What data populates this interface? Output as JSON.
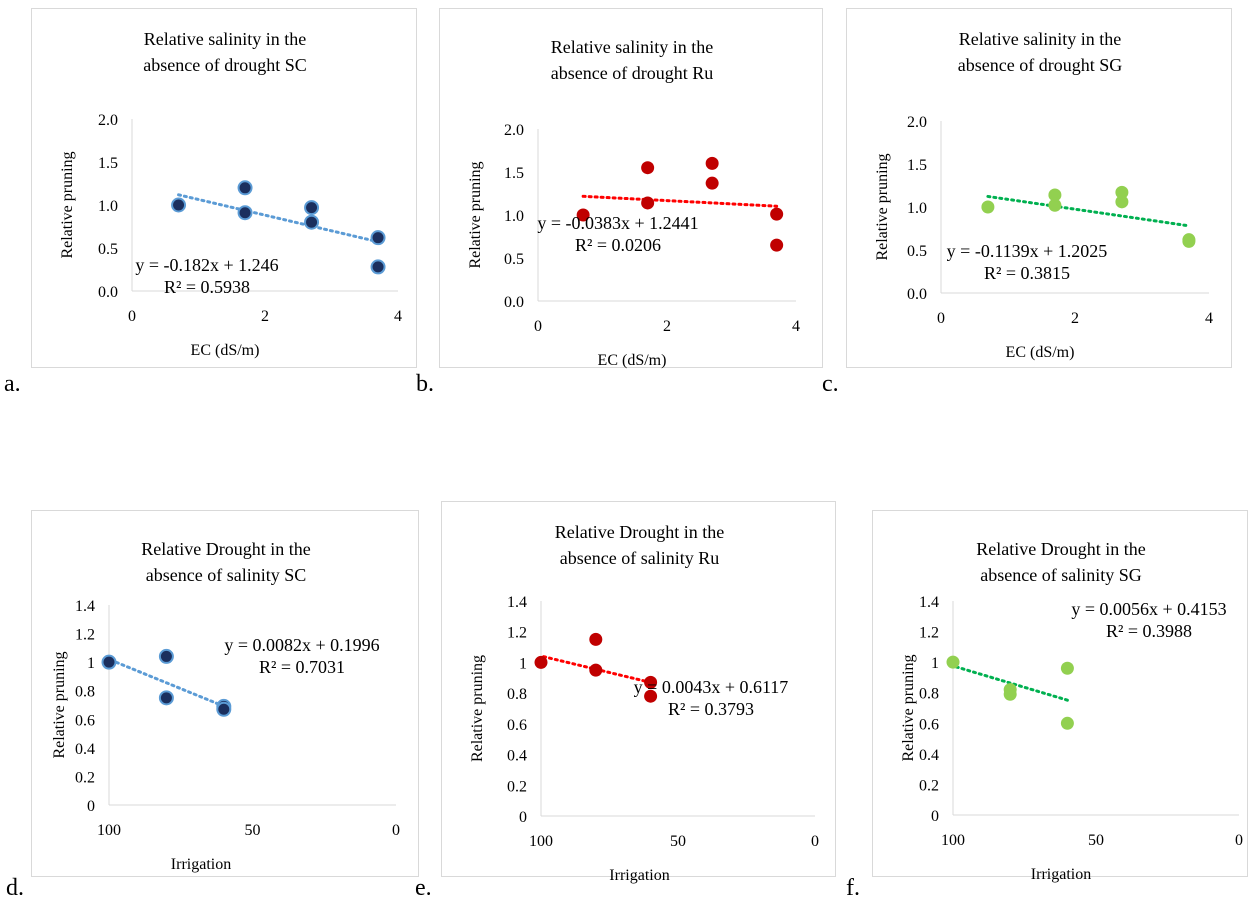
{
  "chart_data": [
    {
      "panel_label": "a.",
      "type": "scatter",
      "title": [
        "Relative salinity in the",
        "absence of drought SC"
      ],
      "xlabel": "EC (dS/m)",
      "ylabel": "Relative pruning",
      "xlim": [
        0,
        4
      ],
      "ylim": [
        0,
        2
      ],
      "xticks": [
        "0",
        "2",
        "4"
      ],
      "yticks": [
        "0.0",
        "0.5",
        "1.0",
        "1.5",
        "2.0"
      ],
      "grid": false,
      "x_reversed": false,
      "color": "#1b2f5e",
      "ring_color": "#5b9bd5",
      "trend_color": "#5b9bd5",
      "trend": {
        "slope": -0.182,
        "intercept": 1.246,
        "x_range": [
          0.7,
          3.7
        ]
      },
      "equation": "y = -0.182x + 1.246",
      "r2": "R² = 0.5938",
      "points": [
        {
          "x": 0.7,
          "y": 1.0
        },
        {
          "x": 1.7,
          "y": 1.2
        },
        {
          "x": 1.7,
          "y": 0.91
        },
        {
          "x": 2.7,
          "y": 0.97
        },
        {
          "x": 2.7,
          "y": 0.8
        },
        {
          "x": 3.7,
          "y": 0.62
        },
        {
          "x": 3.7,
          "y": 0.28
        }
      ]
    },
    {
      "panel_label": "b.",
      "type": "scatter",
      "title": [
        "Relative salinity in the",
        "absence of drought Ru"
      ],
      "xlabel": "EC (dS/m)",
      "ylabel": "Relative pruning",
      "xlim": [
        0,
        4
      ],
      "ylim": [
        0,
        2
      ],
      "xticks": [
        "0",
        "2",
        "4"
      ],
      "yticks": [
        "0.0",
        "0.5",
        "1.0",
        "1.5",
        "2.0"
      ],
      "grid": false,
      "x_reversed": false,
      "color": "#c00000",
      "ring_color": "",
      "trend_color": "#ff0000",
      "trend": {
        "slope": -0.0383,
        "intercept": 1.2441,
        "x_range": [
          0.7,
          3.7
        ]
      },
      "equation": "y = -0.0383x + 1.2441",
      "r2": "R² = 0.0206",
      "points": [
        {
          "x": 0.7,
          "y": 1.0
        },
        {
          "x": 1.7,
          "y": 1.55
        },
        {
          "x": 1.7,
          "y": 1.14
        },
        {
          "x": 2.7,
          "y": 1.6
        },
        {
          "x": 2.7,
          "y": 1.37
        },
        {
          "x": 3.7,
          "y": 1.01
        },
        {
          "x": 3.7,
          "y": 0.65
        }
      ]
    },
    {
      "panel_label": "c.",
      "type": "scatter",
      "title": [
        "Relative salinity in the",
        "absence of drought SG"
      ],
      "xlabel": "EC (dS/m)",
      "ylabel": "Relative pruning",
      "xlim": [
        0,
        4
      ],
      "ylim": [
        0,
        2
      ],
      "xticks": [
        "0",
        "2",
        "4"
      ],
      "yticks": [
        "0.0",
        "0.5",
        "1.0",
        "1.5",
        "2.0"
      ],
      "grid": false,
      "x_reversed": false,
      "color": "#92d050",
      "ring_color": "",
      "trend_color": "#00b050",
      "trend": {
        "slope": -0.1139,
        "intercept": 1.2025,
        "x_range": [
          0.7,
          3.7
        ]
      },
      "equation": "y = -0.1139x + 1.2025",
      "r2": "R² = 0.3815",
      "points": [
        {
          "x": 0.7,
          "y": 1.0
        },
        {
          "x": 1.7,
          "y": 1.14
        },
        {
          "x": 1.7,
          "y": 1.02
        },
        {
          "x": 2.7,
          "y": 1.17
        },
        {
          "x": 2.7,
          "y": 1.06
        },
        {
          "x": 3.7,
          "y": 0.62
        },
        {
          "x": 3.7,
          "y": 0.6
        }
      ]
    },
    {
      "panel_label": "d.",
      "type": "scatter",
      "title": [
        "Relative Drought in the",
        "absence of salinity SC"
      ],
      "xlabel": "Irrigation",
      "ylabel": "Relative pruning",
      "xlim": [
        0,
        100
      ],
      "ylim": [
        0,
        1.4
      ],
      "xticks": [
        "100",
        "50",
        "0"
      ],
      "yticks": [
        "0",
        "0.2",
        "0.4",
        "0.6",
        "0.8",
        "1",
        "1.2",
        "1.4"
      ],
      "grid": false,
      "x_reversed": true,
      "color": "#1b2f5e",
      "ring_color": "#5b9bd5",
      "trend_color": "#5b9bd5",
      "trend": {
        "slope": 0.0082,
        "intercept": 0.1996,
        "x_range": [
          60,
          100
        ]
      },
      "equation": "y = 0.0082x + 0.1996",
      "r2": "R² = 0.7031",
      "points": [
        {
          "x": 100,
          "y": 1.0
        },
        {
          "x": 80,
          "y": 1.04
        },
        {
          "x": 80,
          "y": 0.75
        },
        {
          "x": 60,
          "y": 0.69
        },
        {
          "x": 60,
          "y": 0.67
        }
      ]
    },
    {
      "panel_label": "e.",
      "type": "scatter",
      "title": [
        "Relative Drought in the",
        "absence of salinity Ru"
      ],
      "xlabel": "Irrigation",
      "ylabel": "Relative pruning",
      "xlim": [
        0,
        100
      ],
      "ylim": [
        0,
        1.4
      ],
      "xticks": [
        "100",
        "50",
        "0"
      ],
      "yticks": [
        "0",
        "0.2",
        "0.4",
        "0.6",
        "0.8",
        "1",
        "1.2",
        "1.4"
      ],
      "grid": false,
      "x_reversed": true,
      "color": "#c00000",
      "ring_color": "",
      "trend_color": "#ff0000",
      "trend": {
        "slope": 0.0043,
        "intercept": 0.6117,
        "x_range": [
          60,
          100
        ]
      },
      "equation": "y = 0.0043x + 0.6117",
      "r2": "R² = 0.3793",
      "points": [
        {
          "x": 100,
          "y": 1.0
        },
        {
          "x": 80,
          "y": 1.15
        },
        {
          "x": 80,
          "y": 0.95
        },
        {
          "x": 60,
          "y": 0.87
        },
        {
          "x": 60,
          "y": 0.78
        }
      ]
    },
    {
      "panel_label": "f.",
      "type": "scatter",
      "title": [
        "Relative Drought in the",
        "absence of salinity SG"
      ],
      "xlabel": "Irrigation",
      "ylabel": "Relative pruning",
      "xlim": [
        0,
        100
      ],
      "ylim": [
        0,
        1.4
      ],
      "xticks": [
        "100",
        "50",
        "0"
      ],
      "yticks": [
        "0",
        "0.2",
        "0.4",
        "0.6",
        "0.8",
        "1",
        "1.2",
        "1.4"
      ],
      "grid": false,
      "x_reversed": true,
      "color": "#92d050",
      "ring_color": "",
      "trend_color": "#00b050",
      "trend": {
        "slope": 0.0056,
        "intercept": 0.4153,
        "x_range": [
          60,
          100
        ]
      },
      "equation": "y = 0.0056x + 0.4153",
      "r2": "R² = 0.3988",
      "points": [
        {
          "x": 100,
          "y": 1.0
        },
        {
          "x": 80,
          "y": 0.82
        },
        {
          "x": 80,
          "y": 0.79
        },
        {
          "x": 60,
          "y": 0.96
        },
        {
          "x": 60,
          "y": 0.6
        }
      ]
    }
  ]
}
